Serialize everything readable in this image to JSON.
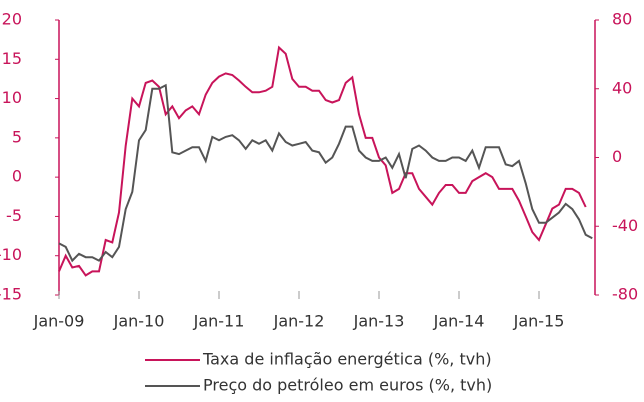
{
  "chart_data": {
    "type": "line",
    "categories": [
      "Jan-09",
      null,
      null,
      null,
      null,
      null,
      null,
      null,
      null,
      null,
      null,
      null,
      "Jan-10",
      null,
      null,
      null,
      null,
      null,
      null,
      null,
      null,
      null,
      null,
      null,
      "Jan-11",
      null,
      null,
      null,
      null,
      null,
      null,
      null,
      null,
      null,
      null,
      null,
      "Jan-12",
      null,
      null,
      null,
      null,
      null,
      null,
      null,
      null,
      null,
      null,
      null,
      "Jan-13",
      null,
      null,
      null,
      null,
      null,
      null,
      null,
      null,
      null,
      null,
      null,
      "Jan-14",
      null,
      null,
      null,
      null,
      null,
      null,
      null,
      null,
      null,
      null,
      null,
      "Jan-15",
      null,
      null,
      null,
      null,
      null,
      null,
      null,
      null
    ],
    "series": [
      {
        "name": "Taxa de inflação energética (%, tvh)",
        "color": "#c8145a",
        "axis": "y",
        "values": [
          -12,
          -10,
          -11.5,
          -11.3,
          -12.5,
          -12,
          -12,
          -8,
          -8.3,
          -4.5,
          4,
          10,
          9,
          12,
          12.3,
          11.5,
          8,
          9,
          7.5,
          8.5,
          9,
          8,
          10.5,
          12,
          12.8,
          13.2,
          13,
          12.3,
          11.5,
          10.8,
          10.8,
          11,
          11.5,
          16.5,
          15.7,
          12.5,
          11.5,
          11.5,
          11,
          11,
          9.8,
          9.5,
          9.8,
          12,
          12.7,
          8,
          5,
          5,
          2.5,
          1.5,
          -2,
          -1.5,
          0.5,
          0.5,
          -1.5,
          -2.5,
          -3.5,
          -2,
          -1,
          -1,
          -2,
          -2,
          -0.5,
          0,
          0.5,
          0,
          -1.5,
          -1.5,
          -1.5,
          -3,
          -5,
          -7,
          -8,
          -6,
          -4,
          -3.5,
          -1.5,
          -1.5,
          -2,
          -3.8,
          null
        ]
      },
      {
        "name": "Preço do petróleo em euros (%, tvh)",
        "color": "#555555",
        "axis": "y2",
        "values": [
          -50,
          -52,
          -60,
          -56,
          -58,
          -58,
          -60,
          -55,
          -58,
          -52,
          -30,
          -20,
          10,
          16,
          40,
          40,
          42,
          3,
          2,
          4,
          6,
          6,
          -2,
          12,
          10,
          12,
          13,
          10,
          5,
          10,
          8,
          10,
          4,
          14,
          9,
          7,
          8,
          9,
          4,
          3,
          -3,
          0,
          8,
          18,
          18,
          4,
          0,
          -2,
          -2,
          0,
          -6,
          2,
          -12,
          5,
          7,
          4,
          0,
          -2,
          -2,
          0,
          0,
          -2,
          4,
          -6,
          6,
          6,
          6,
          -4,
          -5,
          -2,
          -15,
          -30,
          -38,
          -38,
          -35,
          -32,
          -27,
          -30,
          -36,
          -45,
          -47
        ]
      }
    ],
    "ylim": [
      -15,
      20
    ],
    "yticks": [
      -15,
      -10,
      -5,
      0,
      5,
      10,
      15,
      20
    ],
    "y2lim": [
      -80,
      80
    ],
    "y2ticks": [
      -80,
      -40,
      0,
      40,
      80
    ],
    "axis_color": "#c8145a"
  }
}
